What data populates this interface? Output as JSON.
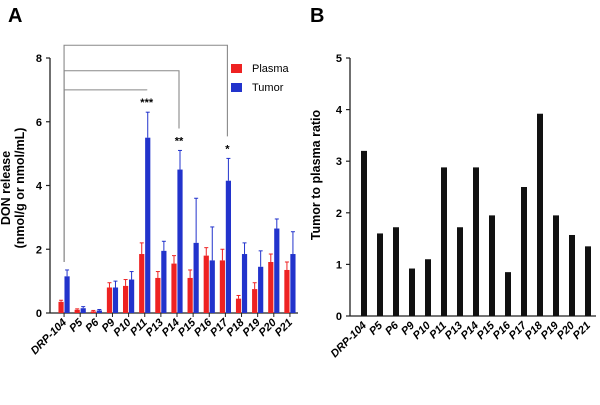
{
  "panels": {
    "a_label": "A",
    "b_label": "B"
  },
  "chart_data": [
    {
      "type": "bar",
      "panel": "A",
      "title": "",
      "ylabel": "DON release\n(nmol/g or nmol/mL)",
      "ylabel_line1": "DON release",
      "ylabel_line2": "(nmol/g or nmol/mL)",
      "xlabel": "",
      "ylim": [
        0,
        8
      ],
      "yticks": [
        0,
        2,
        4,
        6,
        8
      ],
      "categories": [
        "DRP-104",
        "P5",
        "P6",
        "P9",
        "P10",
        "P11",
        "P13",
        "P14",
        "P15",
        "P16",
        "P17",
        "P18",
        "P19",
        "P20",
        "P21"
      ],
      "series": [
        {
          "name": "Plasma",
          "color": "#ee2222",
          "values": [
            0.35,
            0.1,
            0.05,
            0.8,
            0.85,
            1.85,
            1.1,
            1.55,
            1.1,
            1.8,
            1.65,
            0.45,
            0.75,
            1.6,
            1.35
          ],
          "errors": [
            0.05,
            0.03,
            0.03,
            0.15,
            0.2,
            0.35,
            0.2,
            0.25,
            0.25,
            0.25,
            0.35,
            0.1,
            0.2,
            0.25,
            0.25
          ]
        },
        {
          "name": "Tumor",
          "color": "#2233cc",
          "values": [
            1.15,
            0.15,
            0.08,
            0.8,
            1.05,
            5.5,
            1.95,
            4.5,
            2.2,
            1.65,
            4.15,
            1.85,
            1.45,
            2.65,
            1.85
          ],
          "errors": [
            0.2,
            0.05,
            0.03,
            0.2,
            0.25,
            0.8,
            0.3,
            0.6,
            1.4,
            1.05,
            0.7,
            0.35,
            0.5,
            0.3,
            0.7
          ]
        }
      ],
      "legend": {
        "placement": "top-right",
        "entries": [
          "Plasma",
          "Tumor"
        ]
      },
      "significance": [
        {
          "category": "P11",
          "label": "***"
        },
        {
          "category": "P14",
          "label": "**"
        },
        {
          "category": "P17",
          "label": "*"
        }
      ],
      "comparison_brackets": [
        {
          "from": "DRP-104",
          "to": "P11",
          "level": 7.0
        },
        {
          "from": "DRP-104",
          "to": "P14",
          "level": 7.6
        },
        {
          "from": "DRP-104",
          "to": "P17",
          "level": 8.4
        }
      ]
    },
    {
      "type": "bar",
      "panel": "B",
      "title": "",
      "ylabel": "Tumor to plasma ratio",
      "xlabel": "",
      "ylim": [
        0,
        5
      ],
      "yticks": [
        0,
        1,
        2,
        3,
        4,
        5
      ],
      "categories": [
        "DRP-104",
        "P5",
        "P6",
        "P9",
        "P10",
        "P11",
        "P13",
        "P14",
        "P15",
        "P16",
        "P17",
        "P18",
        "P19",
        "P20",
        "P21"
      ],
      "series": [
        {
          "name": "Tumor to plasma ratio",
          "color": "#111111",
          "values": [
            3.2,
            1.6,
            1.72,
            0.92,
            1.1,
            2.88,
            1.72,
            2.88,
            1.95,
            0.85,
            2.5,
            3.92,
            1.95,
            1.57,
            1.35
          ]
        }
      ]
    }
  ]
}
